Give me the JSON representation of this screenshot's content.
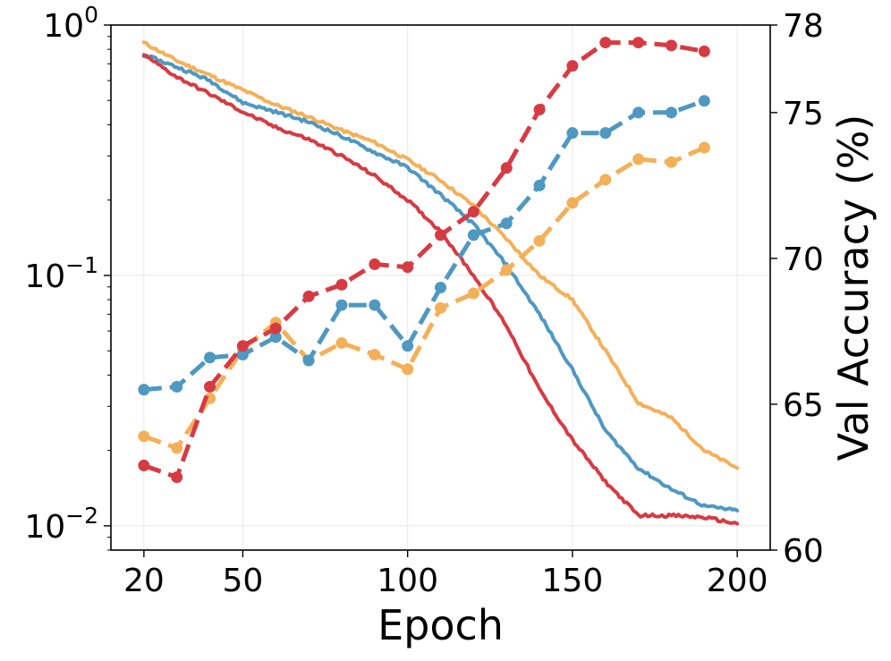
{
  "chart_data": {
    "type": "line",
    "xlabel": "Epoch",
    "ylabel_left": "",
    "ylabel_right": "Val Accuracy (%)",
    "x_ticks": [
      20,
      50,
      100,
      150,
      200
    ],
    "xlim": [
      10,
      210
    ],
    "left_axis": {
      "scale": "log",
      "ylim": [
        0.008,
        1.0
      ],
      "ticks": [
        {
          "base": "10",
          "exp": "0",
          "value": 1.0
        },
        {
          "base": "10",
          "exp": "−1",
          "value": 0.1
        },
        {
          "base": "10",
          "exp": "−2",
          "value": 0.01
        }
      ]
    },
    "right_axis": {
      "scale": "linear",
      "ylim": [
        60,
        78
      ],
      "ticks": [
        60,
        65,
        70,
        75,
        78
      ]
    },
    "grid": true,
    "loss_series": [
      {
        "name": "orange-loss",
        "color": "#F4B058",
        "axis": "left",
        "style": "solid",
        "x": [
          20,
          30,
          40,
          50,
          60,
          70,
          80,
          90,
          100,
          110,
          120,
          130,
          140,
          150,
          160,
          170,
          180,
          190,
          200
        ],
        "y": [
          0.85,
          0.72,
          0.63,
          0.55,
          0.48,
          0.43,
          0.38,
          0.34,
          0.29,
          0.24,
          0.19,
          0.14,
          0.1,
          0.08,
          0.05,
          0.031,
          0.027,
          0.02,
          0.017
        ]
      },
      {
        "name": "blue-loss",
        "color": "#4E98C1",
        "axis": "left",
        "style": "solid",
        "x": [
          20,
          30,
          40,
          50,
          60,
          70,
          80,
          90,
          100,
          110,
          120,
          130,
          140,
          150,
          160,
          170,
          180,
          190,
          200
        ],
        "y": [
          0.76,
          0.68,
          0.6,
          0.49,
          0.45,
          0.41,
          0.36,
          0.31,
          0.27,
          0.21,
          0.16,
          0.11,
          0.07,
          0.042,
          0.024,
          0.017,
          0.014,
          0.012,
          0.0115
        ]
      },
      {
        "name": "red-loss",
        "color": "#D63B43",
        "axis": "left",
        "style": "solid",
        "x": [
          20,
          30,
          40,
          50,
          60,
          70,
          80,
          90,
          100,
          110,
          120,
          130,
          140,
          150,
          160,
          170,
          180,
          190,
          200
        ],
        "y": [
          0.76,
          0.62,
          0.53,
          0.45,
          0.39,
          0.35,
          0.3,
          0.25,
          0.2,
          0.15,
          0.1,
          0.063,
          0.035,
          0.022,
          0.015,
          0.011,
          0.011,
          0.0108,
          0.0102
        ]
      }
    ],
    "acc_series": [
      {
        "name": "orange-acc",
        "color": "#F4B058",
        "axis": "right",
        "style": "dashed",
        "x": [
          20,
          30,
          40,
          50,
          60,
          70,
          80,
          90,
          100,
          110,
          120,
          130,
          140,
          150,
          160,
          170,
          180,
          190
        ],
        "y": [
          63.9,
          63.5,
          65.2,
          66.9,
          67.8,
          66.5,
          67.1,
          66.7,
          66.2,
          68.3,
          68.8,
          69.6,
          70.6,
          71.9,
          72.7,
          73.4,
          73.3,
          73.8
        ]
      },
      {
        "name": "blue-acc",
        "color": "#4E98C1",
        "axis": "right",
        "style": "dashed",
        "x": [
          20,
          30,
          40,
          50,
          60,
          70,
          80,
          90,
          100,
          110,
          120,
          130,
          140,
          150,
          160,
          170,
          180,
          190
        ],
        "y": [
          65.5,
          65.6,
          66.6,
          66.7,
          67.3,
          66.5,
          68.4,
          68.4,
          67.0,
          69.0,
          70.8,
          71.2,
          72.5,
          74.3,
          74.3,
          75.0,
          75.0,
          75.4
        ]
      },
      {
        "name": "red-acc",
        "color": "#D63B43",
        "axis": "right",
        "style": "dashed",
        "x": [
          20,
          30,
          40,
          50,
          60,
          70,
          80,
          90,
          100,
          110,
          120,
          130,
          140,
          150,
          160,
          170,
          180,
          190
        ],
        "y": [
          62.9,
          62.5,
          65.6,
          67.0,
          67.6,
          68.7,
          69.1,
          69.8,
          69.7,
          70.8,
          71.6,
          73.1,
          75.1,
          76.6,
          77.4,
          77.4,
          77.3,
          77.1
        ]
      }
    ]
  }
}
